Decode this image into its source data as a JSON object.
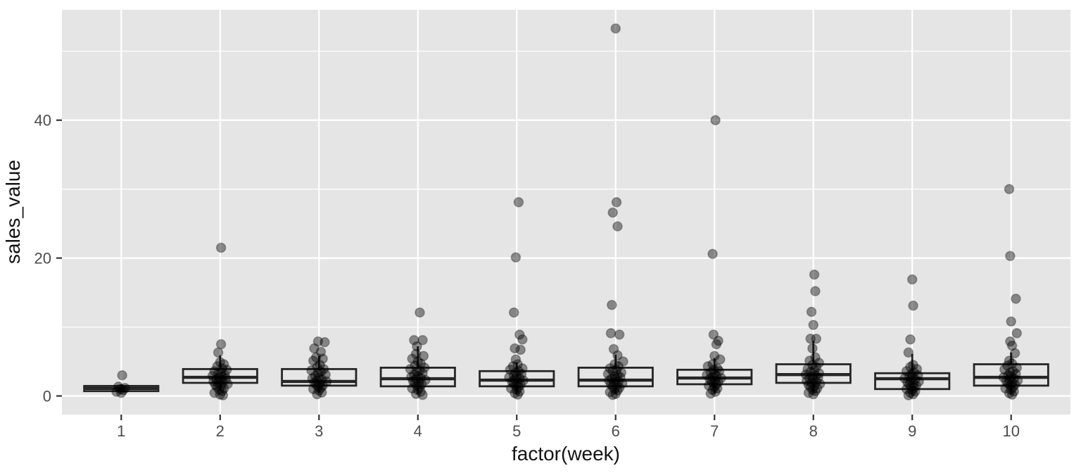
{
  "chart_data": {
    "type": "boxplot",
    "subtype": "boxplot-with-jitter-points",
    "title": "",
    "xlabel": "factor(week)",
    "ylabel": "sales_value",
    "categories": [
      "1",
      "2",
      "3",
      "4",
      "5",
      "6",
      "7",
      "8",
      "9",
      "10"
    ],
    "ylim": [
      -2.7,
      56.0
    ],
    "yticks": [
      0,
      20,
      40
    ],
    "yminor": [
      10,
      30,
      50
    ],
    "grid": "on",
    "legend": "none",
    "style": {
      "panel_bg": "#e5e5e5",
      "grid_color": "#ffffff",
      "box_stroke": "#262626",
      "point_color": "#000000",
      "point_alpha": 0.42,
      "tick_color": "#333333",
      "tick_text_color": "#4d4d4d",
      "title_text_color": "#141414"
    },
    "boxes": [
      {
        "week": "1",
        "whisker_low": 0.55,
        "q1": 0.7,
        "median": 1.1,
        "q3": 1.45,
        "whisker_high": 1.7
      },
      {
        "week": "2",
        "whisker_low": 0.8,
        "q1": 1.9,
        "median": 2.7,
        "q3": 3.9,
        "whisker_high": 5.9
      },
      {
        "week": "3",
        "whisker_low": 0.4,
        "q1": 1.5,
        "median": 2.1,
        "q3": 3.9,
        "whisker_high": 5.8
      },
      {
        "week": "4",
        "whisker_low": 0.3,
        "q1": 1.4,
        "median": 2.5,
        "q3": 4.1,
        "whisker_high": 7.2
      },
      {
        "week": "5",
        "whisker_low": 0.3,
        "q1": 1.4,
        "median": 2.3,
        "q3": 3.6,
        "whisker_high": 4.9
      },
      {
        "week": "6",
        "whisker_low": 0.3,
        "q1": 1.4,
        "median": 2.3,
        "q3": 4.1,
        "whisker_high": 6.0
      },
      {
        "week": "7",
        "whisker_low": 0.4,
        "q1": 1.7,
        "median": 2.6,
        "q3": 3.8,
        "whisker_high": 5.5
      },
      {
        "week": "8",
        "whisker_low": 0.4,
        "q1": 1.9,
        "median": 3.1,
        "q3": 4.6,
        "whisker_high": 8.0
      },
      {
        "week": "9",
        "whisker_low": 0.2,
        "q1": 1.0,
        "median": 2.5,
        "q3": 3.3,
        "whisker_high": 6.1
      },
      {
        "week": "10",
        "whisker_low": 0.3,
        "q1": 1.5,
        "median": 2.7,
        "q3": 4.6,
        "whisker_high": 6.3
      }
    ],
    "points": {
      "1": [
        [
          3.0,
          1
        ],
        [
          1.35,
          -3
        ],
        [
          1.15,
          4
        ],
        [
          1.0,
          -1
        ],
        [
          0.85,
          2
        ],
        [
          0.45,
          0
        ],
        [
          0.6,
          -5
        ]
      ],
      "2": [
        [
          21.5,
          1
        ],
        [
          7.5,
          1
        ],
        [
          6.3,
          -2
        ],
        [
          4.9,
          0
        ],
        [
          4.6,
          4
        ],
        [
          4.3,
          -3
        ],
        [
          4.0,
          2
        ],
        [
          3.8,
          7
        ],
        [
          3.6,
          -6
        ],
        [
          3.4,
          1
        ],
        [
          3.2,
          -2
        ],
        [
          3.05,
          5
        ],
        [
          2.9,
          -8
        ],
        [
          2.8,
          2
        ],
        [
          2.65,
          -1
        ],
        [
          2.5,
          6
        ],
        [
          2.4,
          -4
        ],
        [
          2.25,
          0
        ],
        [
          2.1,
          -7
        ],
        [
          2.0,
          3
        ],
        [
          1.9,
          -2
        ],
        [
          1.75,
          8
        ],
        [
          1.6,
          -5
        ],
        [
          1.45,
          1
        ],
        [
          1.3,
          -3
        ],
        [
          1.1,
          4
        ],
        [
          0.9,
          -1
        ],
        [
          0.7,
          2
        ],
        [
          0.45,
          -6
        ],
        [
          0.2,
          0
        ],
        [
          0.1,
          3
        ]
      ],
      "3": [
        [
          7.9,
          -1
        ],
        [
          7.8,
          6
        ],
        [
          6.9,
          -5
        ],
        [
          6.4,
          2
        ],
        [
          5.6,
          -3
        ],
        [
          5.4,
          4
        ],
        [
          5.1,
          -6
        ],
        [
          4.5,
          1
        ],
        [
          4.2,
          -2
        ],
        [
          3.9,
          5
        ],
        [
          3.7,
          -8
        ],
        [
          3.5,
          2
        ],
        [
          3.3,
          -1
        ],
        [
          3.1,
          7
        ],
        [
          2.9,
          -4
        ],
        [
          2.7,
          0
        ],
        [
          2.55,
          -7
        ],
        [
          2.4,
          3
        ],
        [
          2.25,
          -2
        ],
        [
          2.1,
          8
        ],
        [
          1.95,
          -5
        ],
        [
          1.8,
          1
        ],
        [
          1.65,
          -3
        ],
        [
          1.5,
          4
        ],
        [
          1.35,
          -1
        ],
        [
          1.2,
          2
        ],
        [
          1.0,
          -6
        ],
        [
          0.8,
          0
        ],
        [
          0.5,
          3
        ],
        [
          0.25,
          -2
        ]
      ],
      "4": [
        [
          12.1,
          2
        ],
        [
          8.1,
          -4
        ],
        [
          8.1,
          5
        ],
        [
          7.2,
          -1
        ],
        [
          6.1,
          -2
        ],
        [
          5.8,
          6
        ],
        [
          5.4,
          -6
        ],
        [
          5.0,
          0
        ],
        [
          4.7,
          3
        ],
        [
          4.4,
          -3
        ],
        [
          4.1,
          7
        ],
        [
          3.9,
          -8
        ],
        [
          3.7,
          2
        ],
        [
          3.5,
          -1
        ],
        [
          3.3,
          5
        ],
        [
          3.1,
          -4
        ],
        [
          2.9,
          0
        ],
        [
          2.75,
          -7
        ],
        [
          2.6,
          3
        ],
        [
          2.45,
          -2
        ],
        [
          2.3,
          8
        ],
        [
          2.15,
          -5
        ],
        [
          2.0,
          1
        ],
        [
          1.85,
          -3
        ],
        [
          1.7,
          4
        ],
        [
          1.5,
          -1
        ],
        [
          1.3,
          2
        ],
        [
          1.1,
          -6
        ],
        [
          0.9,
          0
        ],
        [
          0.6,
          3
        ],
        [
          0.3,
          -2
        ],
        [
          0.15,
          5
        ]
      ],
      "5": [
        [
          28.1,
          2
        ],
        [
          20.1,
          -1
        ],
        [
          12.1,
          -3
        ],
        [
          8.9,
          3
        ],
        [
          8.2,
          6
        ],
        [
          6.9,
          -2
        ],
        [
          6.7,
          4
        ],
        [
          5.3,
          -1
        ],
        [
          4.6,
          1
        ],
        [
          4.3,
          -4
        ],
        [
          4.0,
          6
        ],
        [
          3.8,
          -7
        ],
        [
          3.6,
          2
        ],
        [
          3.4,
          -1
        ],
        [
          3.2,
          5
        ],
        [
          3.0,
          -3
        ],
        [
          2.85,
          0
        ],
        [
          2.7,
          -8
        ],
        [
          2.55,
          3
        ],
        [
          2.4,
          -2
        ],
        [
          2.25,
          7
        ],
        [
          2.1,
          -5
        ],
        [
          1.95,
          1
        ],
        [
          1.8,
          -3
        ],
        [
          1.65,
          4
        ],
        [
          1.5,
          -1
        ],
        [
          1.3,
          2
        ],
        [
          1.1,
          -6
        ],
        [
          0.9,
          0
        ],
        [
          0.65,
          3
        ],
        [
          0.4,
          -2
        ],
        [
          0.2,
          1
        ]
      ],
      "6": [
        [
          53.3,
          0
        ],
        [
          28.1,
          1
        ],
        [
          26.6,
          -3
        ],
        [
          24.6,
          2
        ],
        [
          13.2,
          -4
        ],
        [
          9.1,
          -5
        ],
        [
          8.9,
          4
        ],
        [
          6.8,
          -2
        ],
        [
          5.9,
          2
        ],
        [
          5.0,
          8
        ],
        [
          4.6,
          -1
        ],
        [
          4.3,
          3
        ],
        [
          4.0,
          -6
        ],
        [
          3.8,
          1
        ],
        [
          3.6,
          -3
        ],
        [
          3.4,
          6
        ],
        [
          3.2,
          -8
        ],
        [
          3.0,
          2
        ],
        [
          2.85,
          -1
        ],
        [
          2.7,
          5
        ],
        [
          2.55,
          -4
        ],
        [
          2.4,
          0
        ],
        [
          2.25,
          -7
        ],
        [
          2.1,
          3
        ],
        [
          1.95,
          -2
        ],
        [
          1.8,
          7
        ],
        [
          1.65,
          -5
        ],
        [
          1.5,
          1
        ],
        [
          1.35,
          -3
        ],
        [
          1.2,
          4
        ],
        [
          1.0,
          -1
        ],
        [
          0.8,
          2
        ],
        [
          0.55,
          -6
        ],
        [
          0.3,
          0
        ],
        [
          0.15,
          -3
        ]
      ],
      "7": [
        [
          40.0,
          1
        ],
        [
          20.6,
          -2
        ],
        [
          8.9,
          -1
        ],
        [
          8.0,
          4
        ],
        [
          7.5,
          2
        ],
        [
          5.8,
          0
        ],
        [
          5.3,
          6
        ],
        [
          4.6,
          -2
        ],
        [
          4.3,
          -7
        ],
        [
          4.0,
          3
        ],
        [
          3.8,
          -1
        ],
        [
          3.6,
          5
        ],
        [
          3.4,
          -4
        ],
        [
          3.2,
          0
        ],
        [
          3.05,
          -8
        ],
        [
          2.9,
          2
        ],
        [
          2.75,
          -2
        ],
        [
          2.6,
          7
        ],
        [
          2.45,
          -5
        ],
        [
          2.3,
          1
        ],
        [
          2.15,
          -3
        ],
        [
          2.0,
          4
        ],
        [
          1.85,
          -1
        ],
        [
          1.7,
          2
        ],
        [
          1.5,
          -6
        ],
        [
          1.3,
          0
        ],
        [
          1.1,
          3
        ],
        [
          0.9,
          -2
        ],
        [
          0.6,
          1
        ],
        [
          0.35,
          -4
        ]
      ],
      "8": [
        [
          17.6,
          1
        ],
        [
          15.2,
          2
        ],
        [
          12.2,
          -2
        ],
        [
          10.3,
          0
        ],
        [
          8.3,
          -3
        ],
        [
          8.3,
          3
        ],
        [
          6.9,
          -1
        ],
        [
          5.6,
          2
        ],
        [
          5.1,
          -4
        ],
        [
          4.8,
          6
        ],
        [
          4.5,
          -1
        ],
        [
          4.2,
          3
        ],
        [
          3.9,
          -6
        ],
        [
          3.7,
          1
        ],
        [
          3.5,
          -3
        ],
        [
          3.3,
          6
        ],
        [
          3.1,
          -8
        ],
        [
          2.95,
          2
        ],
        [
          2.8,
          -1
        ],
        [
          2.65,
          5
        ],
        [
          2.5,
          -4
        ],
        [
          2.35,
          0
        ],
        [
          2.2,
          -7
        ],
        [
          2.05,
          3
        ],
        [
          1.9,
          -2
        ],
        [
          1.75,
          7
        ],
        [
          1.6,
          -5
        ],
        [
          1.45,
          1
        ],
        [
          1.3,
          -3
        ],
        [
          1.1,
          4
        ],
        [
          0.9,
          -1
        ],
        [
          0.7,
          2
        ],
        [
          0.45,
          -5
        ],
        [
          0.25,
          0
        ]
      ],
      "9": [
        [
          16.9,
          0
        ],
        [
          13.1,
          1
        ],
        [
          8.2,
          -2
        ],
        [
          6.3,
          -4
        ],
        [
          4.5,
          1
        ],
        [
          4.2,
          -2
        ],
        [
          3.9,
          5
        ],
        [
          3.6,
          -6
        ],
        [
          3.4,
          2
        ],
        [
          3.2,
          -1
        ],
        [
          3.0,
          6
        ],
        [
          2.85,
          -3
        ],
        [
          2.7,
          0
        ],
        [
          2.55,
          -8
        ],
        [
          2.4,
          3
        ],
        [
          2.25,
          -2
        ],
        [
          2.1,
          7
        ],
        [
          1.95,
          -5
        ],
        [
          1.8,
          1
        ],
        [
          1.65,
          -3
        ],
        [
          1.5,
          4
        ],
        [
          1.35,
          -1
        ],
        [
          1.2,
          2
        ],
        [
          1.0,
          -6
        ],
        [
          0.85,
          0
        ],
        [
          0.65,
          3
        ],
        [
          0.45,
          -2
        ],
        [
          0.25,
          1
        ],
        [
          0.1,
          -4
        ]
      ],
      "10": [
        [
          30.0,
          -2
        ],
        [
          20.3,
          -1
        ],
        [
          14.1,
          5
        ],
        [
          10.8,
          0
        ],
        [
          9.1,
          6
        ],
        [
          7.9,
          -1
        ],
        [
          7.3,
          1
        ],
        [
          6.2,
          4
        ],
        [
          5.1,
          -2
        ],
        [
          4.7,
          1
        ],
        [
          4.4,
          -4
        ],
        [
          4.1,
          6
        ],
        [
          3.85,
          -7
        ],
        [
          3.6,
          2
        ],
        [
          3.4,
          -1
        ],
        [
          3.2,
          5
        ],
        [
          3.0,
          -3
        ],
        [
          2.85,
          0
        ],
        [
          2.7,
          -8
        ],
        [
          2.55,
          3
        ],
        [
          2.4,
          -2
        ],
        [
          2.25,
          7
        ],
        [
          2.1,
          -5
        ],
        [
          1.95,
          1
        ],
        [
          1.8,
          -3
        ],
        [
          1.65,
          4
        ],
        [
          1.5,
          -1
        ],
        [
          1.3,
          2
        ],
        [
          1.1,
          -6
        ],
        [
          0.9,
          0
        ],
        [
          0.65,
          3
        ],
        [
          0.4,
          -2
        ],
        [
          0.2,
          1
        ]
      ]
    }
  }
}
